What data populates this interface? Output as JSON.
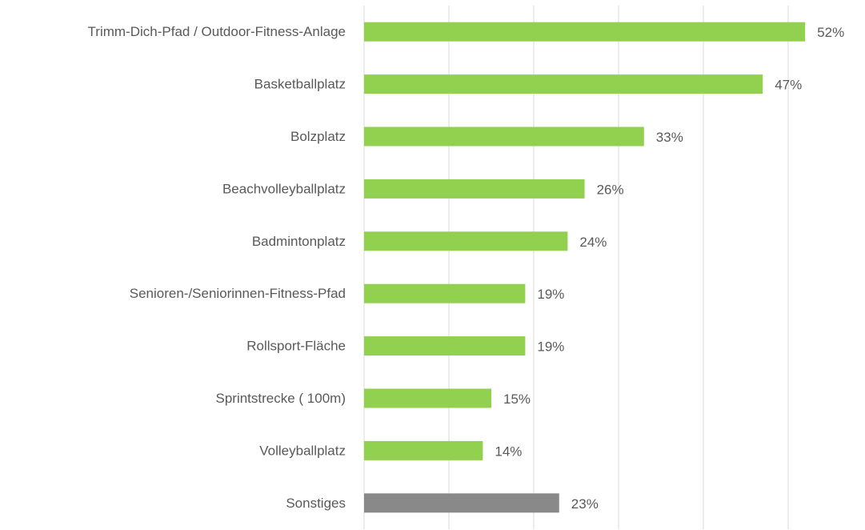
{
  "chart_data": {
    "type": "bar",
    "orientation": "horizontal",
    "categories": [
      "Trimm-Dich-Pfad / Outdoor-Fitness-Anlage",
      "Basketballplatz",
      "Bolzplatz",
      "Beachvolleyballplatz",
      "Badmintonplatz",
      "Senioren-/Seniorinnen-Fitness-Pfad",
      "Rollsport-Fläche",
      "Sprintstrecke ( 100m)",
      "Volleyballplatz",
      "Sonstiges"
    ],
    "values": [
      52,
      47,
      33,
      26,
      24,
      19,
      19,
      15,
      14,
      23
    ],
    "value_labels": [
      "52%",
      "47%",
      "33%",
      "26%",
      "24%",
      "19%",
      "19%",
      "15%",
      "14%",
      "23%"
    ],
    "colors": [
      "#92d050",
      "#92d050",
      "#92d050",
      "#92d050",
      "#92d050",
      "#92d050",
      "#92d050",
      "#92d050",
      "#92d050",
      "#898989"
    ],
    "xlim": [
      0,
      55
    ],
    "xticks": [
      0,
      10,
      20,
      30,
      40,
      50
    ],
    "grid": true
  }
}
